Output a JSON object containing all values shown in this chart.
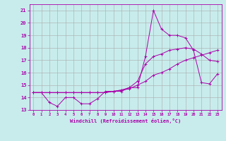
{
  "xlabel": "Windchill (Refroidissement éolien,°C)",
  "bg_color": "#c8ecec",
  "line_color": "#aa00aa",
  "grid_color": "#aaaaaa",
  "xlim": [
    -0.5,
    23.5
  ],
  "ylim": [
    13,
    21.5
  ],
  "yticks": [
    13,
    14,
    15,
    16,
    17,
    18,
    19,
    20,
    21
  ],
  "xticks": [
    0,
    1,
    2,
    3,
    4,
    5,
    6,
    7,
    8,
    9,
    10,
    11,
    12,
    13,
    14,
    15,
    16,
    17,
    18,
    19,
    20,
    21,
    22,
    23
  ],
  "line1_x": [
    0,
    1,
    2,
    3,
    4,
    5,
    6,
    7,
    8,
    9,
    10,
    11,
    12,
    13,
    14,
    15,
    16,
    17,
    18,
    19,
    20,
    21,
    22,
    23
  ],
  "line1_y": [
    14.4,
    14.4,
    13.6,
    13.3,
    14.0,
    14.0,
    13.5,
    13.5,
    13.9,
    14.5,
    14.5,
    14.5,
    14.8,
    14.8,
    17.3,
    21.0,
    19.5,
    19.0,
    19.0,
    18.8,
    17.8,
    15.2,
    15.1,
    15.9
  ],
  "line2_x": [
    0,
    1,
    2,
    3,
    4,
    5,
    6,
    7,
    8,
    9,
    10,
    11,
    12,
    13,
    14,
    15,
    16,
    17,
    18,
    19,
    20,
    21,
    22,
    23
  ],
  "line2_y": [
    14.4,
    14.4,
    14.4,
    14.4,
    14.4,
    14.4,
    14.4,
    14.4,
    14.4,
    14.4,
    14.5,
    14.6,
    14.7,
    15.0,
    15.3,
    15.8,
    16.0,
    16.3,
    16.7,
    17.0,
    17.2,
    17.4,
    17.6,
    17.8
  ],
  "line3_x": [
    0,
    1,
    2,
    3,
    4,
    5,
    6,
    7,
    8,
    9,
    10,
    11,
    12,
    13,
    14,
    15,
    16,
    17,
    18,
    19,
    20,
    21,
    22,
    23
  ],
  "line3_y": [
    14.4,
    14.4,
    14.4,
    14.4,
    14.4,
    14.4,
    14.4,
    14.4,
    14.4,
    14.4,
    14.5,
    14.6,
    14.8,
    15.3,
    16.7,
    17.3,
    17.5,
    17.8,
    17.9,
    18.0,
    17.9,
    17.5,
    17.0,
    16.9
  ]
}
